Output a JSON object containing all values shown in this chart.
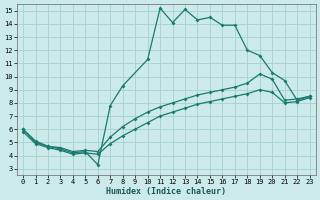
{
  "xlabel": "Humidex (Indice chaleur)",
  "xlim": [
    -0.5,
    23.5
  ],
  "ylim": [
    2.5,
    15.5
  ],
  "xticks": [
    0,
    1,
    2,
    3,
    4,
    5,
    6,
    7,
    8,
    9,
    10,
    11,
    12,
    13,
    14,
    15,
    16,
    17,
    18,
    19,
    20,
    21,
    22,
    23
  ],
  "yticks": [
    3,
    4,
    5,
    6,
    7,
    8,
    9,
    10,
    11,
    12,
    13,
    14,
    15
  ],
  "bg_color": "#cceaea",
  "grid_color": "#aad4d4",
  "line_color": "#1a7a6e",
  "line1_x": [
    0,
    1,
    2,
    3,
    4,
    5,
    6,
    7,
    8,
    10,
    11,
    12,
    13,
    14,
    15,
    16,
    17,
    18,
    19,
    20,
    21,
    22,
    23
  ],
  "line1_y": [
    6,
    5,
    4.7,
    4.5,
    4.2,
    4.3,
    3.3,
    7.8,
    9.3,
    11.3,
    15.2,
    14.1,
    15.1,
    14.3,
    14.5,
    13.9,
    13.9,
    12.0,
    11.6,
    10.3,
    9.7,
    8.2,
    8.5
  ],
  "line2_x": [
    0,
    1,
    2,
    3,
    4,
    5,
    6,
    7,
    8,
    9,
    10,
    11,
    12,
    13,
    14,
    15,
    16,
    17,
    18,
    19,
    20,
    21,
    22,
    23
  ],
  "line2_y": [
    6.0,
    5.1,
    4.7,
    4.6,
    4.3,
    4.4,
    4.3,
    5.4,
    6.2,
    6.8,
    7.3,
    7.7,
    8.0,
    8.3,
    8.6,
    8.8,
    9.0,
    9.2,
    9.5,
    10.2,
    9.8,
    8.2,
    8.3,
    8.5
  ],
  "line3_x": [
    0,
    1,
    2,
    3,
    4,
    5,
    6,
    7,
    8,
    9,
    10,
    11,
    12,
    13,
    14,
    15,
    16,
    17,
    18,
    19,
    20,
    21,
    22,
    23
  ],
  "line3_y": [
    5.8,
    4.9,
    4.6,
    4.4,
    4.1,
    4.2,
    4.1,
    4.9,
    5.5,
    6.0,
    6.5,
    7.0,
    7.3,
    7.6,
    7.9,
    8.1,
    8.3,
    8.5,
    8.7,
    9.0,
    8.8,
    8.0,
    8.1,
    8.4
  ]
}
